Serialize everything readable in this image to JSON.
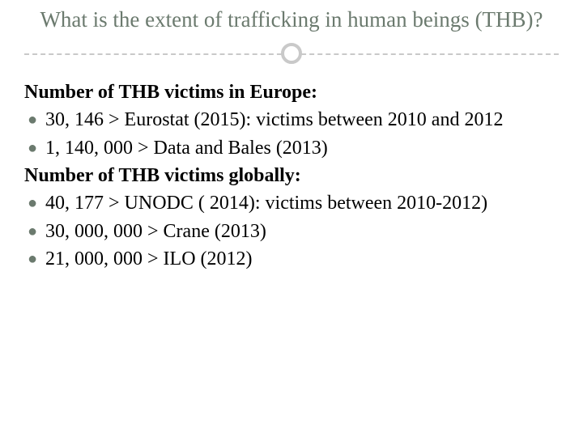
{
  "title": "What is the extent of trafficking in human beings (THB)?",
  "colors": {
    "title_color": "#6b7a6e",
    "bullet_color": "#6b7a6e",
    "text_color": "#000000",
    "divider_color": "#c9c9c9",
    "background": "#ffffff"
  },
  "typography": {
    "title_fontsize": 27,
    "body_fontsize": 24,
    "font_family": "Georgia, serif"
  },
  "sections": [
    {
      "heading": "Number of THB victims in Europe:",
      "bullets": [
        "30, 146 > Eurostat  (2015): victims between 2010 and 2012",
        "1, 140, 000 > Data and Bales (2013)"
      ]
    },
    {
      "heading": "Number of THB victims globally:",
      "bullets": [
        "40, 177 > UNODC ( 2014): victims between 2010-2012)",
        "30, 000, 000 > Crane (2013)",
        "21, 000, 000 > ILO (2012)"
      ]
    }
  ]
}
